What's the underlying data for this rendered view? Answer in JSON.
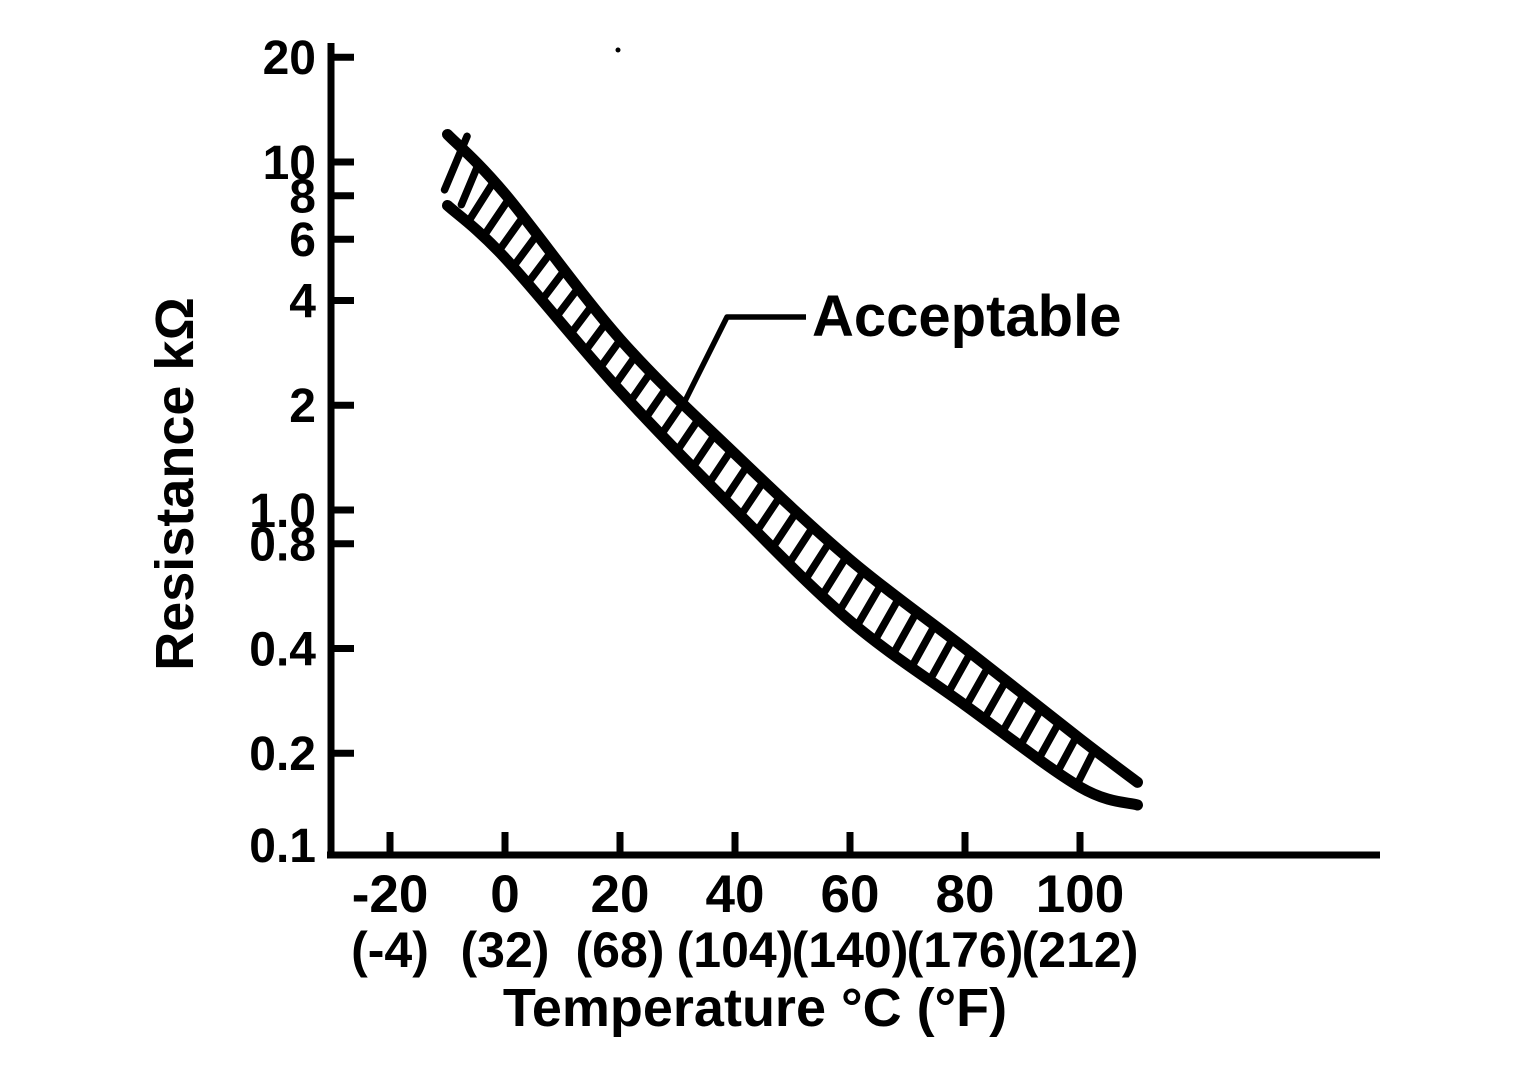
{
  "figure": {
    "background": "#ffffff",
    "ink": "#000000"
  },
  "chart_data": {
    "type": "area",
    "subtype": "hatched-band-on-log-scale",
    "title": "",
    "xlabel": "Temperature °C (°F)",
    "ylabel": "Resistance kΩ",
    "annotation": "Acceptable",
    "grid": false,
    "legend": "none",
    "x_axis": {
      "unit_primary": "°C",
      "unit_secondary": "°F",
      "ticks": [
        {
          "c": -20,
          "label_c": "-20",
          "label_f": "(-4)"
        },
        {
          "c": 0,
          "label_c": "0",
          "label_f": "(32)"
        },
        {
          "c": 20,
          "label_c": "20",
          "label_f": "(68)"
        },
        {
          "c": 40,
          "label_c": "40",
          "label_f": "(104)"
        },
        {
          "c": 60,
          "label_c": "60",
          "label_f": "(140)"
        },
        {
          "c": 80,
          "label_c": "80",
          "label_f": "(176)"
        },
        {
          "c": 100,
          "label_c": "100",
          "label_f": "(212)"
        }
      ]
    },
    "y_axis": {
      "scale": "log",
      "unit": "kΩ",
      "range": [
        0.1,
        20
      ],
      "ticks": [
        {
          "value": 20,
          "label": "20"
        },
        {
          "value": 10,
          "label": "10"
        },
        {
          "value": 8,
          "label": "8"
        },
        {
          "value": 6,
          "label": "6"
        },
        {
          "value": 4,
          "label": "4"
        },
        {
          "value": 2,
          "label": "2"
        },
        {
          "value": 1,
          "label": "1.0"
        },
        {
          "value": 0.8,
          "label": "0.8"
        },
        {
          "value": 0.4,
          "label": "0.4"
        },
        {
          "value": 0.2,
          "label": "0.2"
        },
        {
          "value": 0.1,
          "label": "0.1"
        }
      ]
    },
    "series": [
      {
        "name": "acceptable-upper-limit",
        "x": [
          -10,
          0,
          20,
          40,
          60,
          80,
          100,
          110
        ],
        "values": [
          12,
          8.1,
          3.1,
          1.45,
          0.72,
          0.4,
          0.22,
          0.165
        ]
      },
      {
        "name": "acceptable-lower-limit",
        "x": [
          -10,
          0,
          20,
          40,
          60,
          80,
          100,
          110
        ],
        "values": [
          7.5,
          5.3,
          2.2,
          1.0,
          0.48,
          0.275,
          0.16,
          0.142
        ]
      }
    ],
    "band_style": "hatched",
    "annotation_attach_x_c": 31
  }
}
